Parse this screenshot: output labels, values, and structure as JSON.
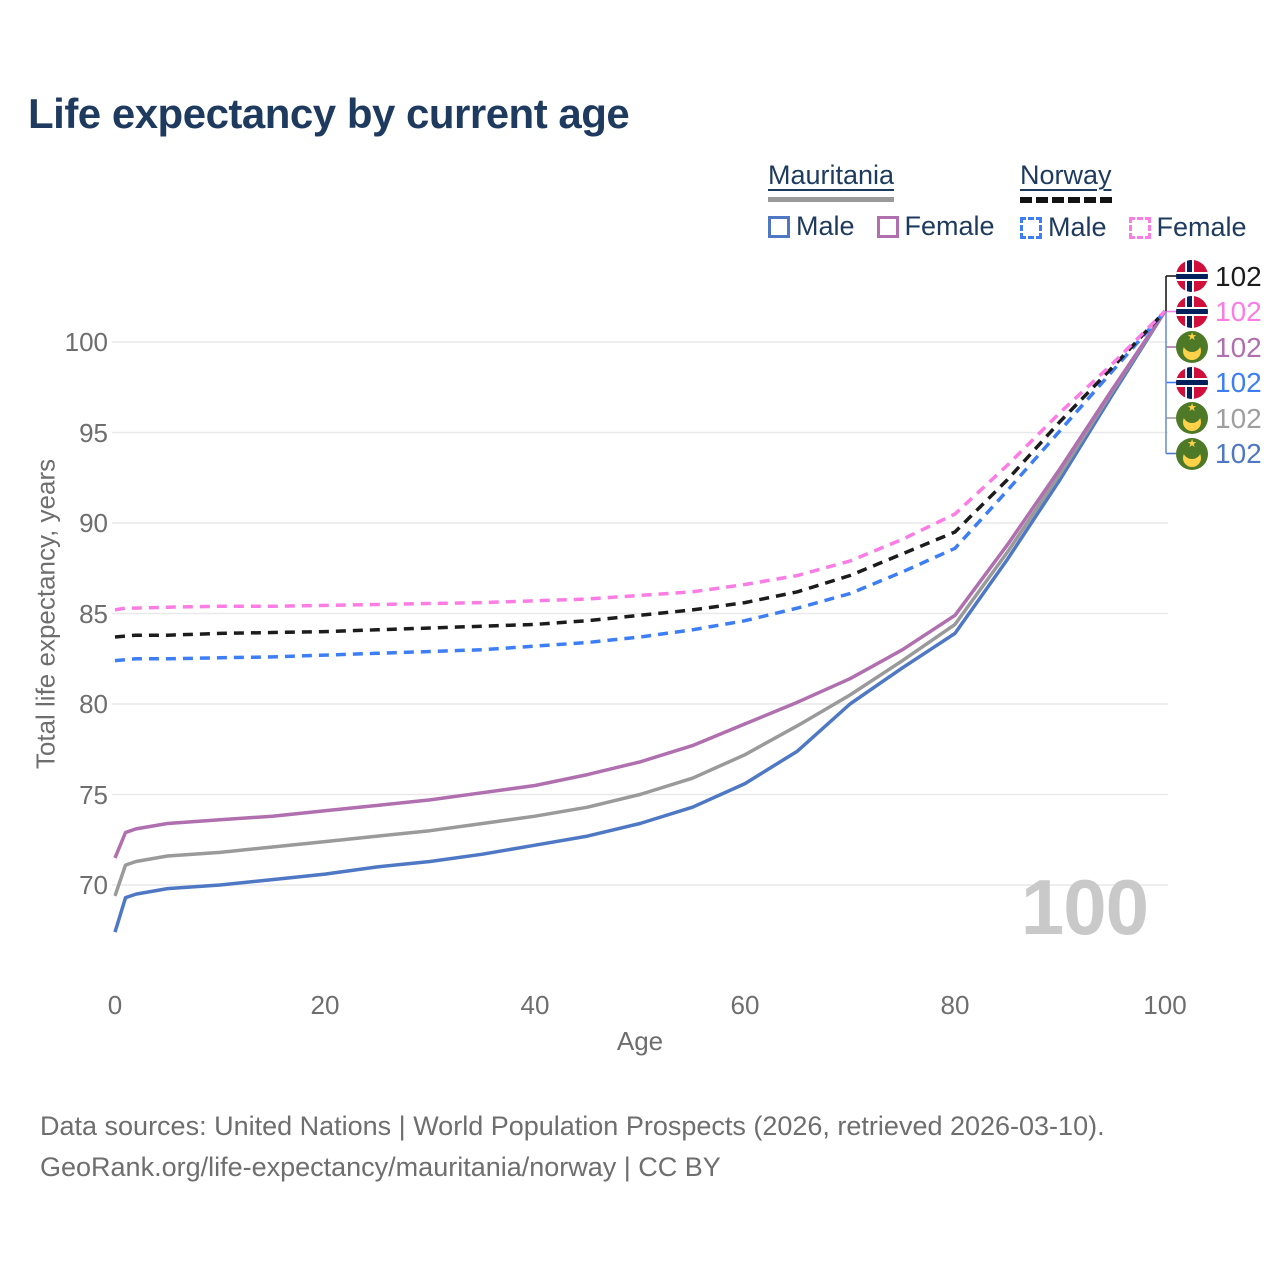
{
  "title": "Life expectancy by current age",
  "legend": {
    "groups": [
      {
        "country": "Mauritania",
        "style": "solid",
        "items": [
          {
            "label": "Male"
          },
          {
            "label": "Female"
          }
        ]
      },
      {
        "country": "Norway",
        "style": "dashed",
        "items": [
          {
            "label": "Male"
          },
          {
            "label": "Female"
          }
        ]
      }
    ]
  },
  "watermark_age": "100",
  "footer": {
    "line1": "Data sources: United Nations | World Population Prospects (2026, retrieved 2026-03-10).",
    "line2": "GeoRank.org/life-expectancy/mauritania/norway | CC BY"
  },
  "colors": {
    "title_text": "#1e3a5f",
    "axis_text": "#6e6e6e",
    "gridline": "#e9e9e9",
    "watermark": "#c9c9c9",
    "mauritania_male": "#4f78c4",
    "mauritania_female": "#b06fae",
    "mauritania_both": "#9a9a9a",
    "norway_male": "#3e7ef5",
    "norway_female": "#fb7ce4",
    "norway_both": "#1c1c1c"
  },
  "chart_data": {
    "type": "line",
    "title": "Life expectancy by current age",
    "xlabel": "Age",
    "ylabel": "Total life expectancy, years",
    "xlim": [
      0,
      100
    ],
    "ylim": [
      66,
      103
    ],
    "x_ticks": [
      0,
      20,
      40,
      60,
      80,
      100
    ],
    "y_ticks": [
      70,
      75,
      80,
      85,
      90,
      95,
      100
    ],
    "grid": true,
    "legend_position": "top-right",
    "x": [
      0,
      1,
      2,
      5,
      10,
      15,
      20,
      25,
      30,
      35,
      40,
      45,
      50,
      55,
      60,
      65,
      70,
      75,
      80,
      85,
      90,
      95,
      100
    ],
    "series": [
      {
        "name": "Mauritania Male",
        "country": "Mauritania",
        "sex": "Male",
        "style": "solid",
        "color": "#4f78c4",
        "values": [
          67.4,
          69.3,
          69.5,
          69.8,
          70.0,
          70.3,
          70.6,
          71.0,
          71.3,
          71.7,
          72.2,
          72.7,
          73.4,
          74.3,
          75.6,
          77.4,
          80.0,
          82.0,
          83.9,
          88.0,
          92.4,
          97.1,
          101.7
        ]
      },
      {
        "name": "Mauritania Both sexes",
        "country": "Mauritania",
        "sex": "Both",
        "style": "solid",
        "color": "#9a9a9a",
        "values": [
          69.4,
          71.1,
          71.3,
          71.6,
          71.8,
          72.1,
          72.4,
          72.7,
          73.0,
          73.4,
          73.8,
          74.3,
          75.0,
          75.9,
          77.2,
          78.8,
          80.5,
          82.4,
          84.4,
          88.4,
          92.7,
          97.3,
          101.7
        ]
      },
      {
        "name": "Mauritania Female",
        "country": "Mauritania",
        "sex": "Female",
        "style": "solid",
        "color": "#b06fae",
        "values": [
          71.5,
          72.9,
          73.1,
          73.4,
          73.6,
          73.8,
          74.1,
          74.4,
          74.7,
          75.1,
          75.5,
          76.1,
          76.8,
          77.7,
          78.9,
          80.1,
          81.4,
          83.0,
          84.9,
          88.8,
          93.0,
          97.4,
          101.7
        ]
      },
      {
        "name": "Norway Male",
        "country": "Norway",
        "sex": "Male",
        "style": "dashed",
        "color": "#3e7ef5",
        "values": [
          82.4,
          82.45,
          82.5,
          82.5,
          82.55,
          82.6,
          82.7,
          82.8,
          82.9,
          83.0,
          83.2,
          83.4,
          83.7,
          84.1,
          84.6,
          85.3,
          86.1,
          87.3,
          88.6,
          91.8,
          95.1,
          98.4,
          101.7
        ]
      },
      {
        "name": "Norway Both sexes",
        "country": "Norway",
        "sex": "Both",
        "style": "dashed",
        "color": "#1c1c1c",
        "values": [
          83.7,
          83.75,
          83.8,
          83.8,
          83.9,
          83.95,
          84.0,
          84.1,
          84.2,
          84.3,
          84.4,
          84.6,
          84.9,
          85.2,
          85.6,
          86.2,
          87.1,
          88.3,
          89.5,
          92.4,
          95.6,
          98.6,
          101.7
        ]
      },
      {
        "name": "Norway Female",
        "country": "Norway",
        "sex": "Female",
        "style": "dashed",
        "color": "#fb7ce4",
        "values": [
          85.2,
          85.3,
          85.3,
          85.35,
          85.4,
          85.4,
          85.45,
          85.5,
          85.55,
          85.6,
          85.7,
          85.8,
          86.0,
          86.2,
          86.6,
          87.1,
          87.9,
          89.1,
          90.5,
          93.2,
          96.1,
          98.8,
          101.7
        ]
      }
    ],
    "end_labels": [
      {
        "value": "102",
        "flag": "norway",
        "series": "Norway Both sexes",
        "color": "#1c1c1c"
      },
      {
        "value": "102",
        "flag": "norway",
        "series": "Norway Female",
        "color": "#fb7ce4"
      },
      {
        "value": "102",
        "flag": "mauritania",
        "series": "Mauritania Female",
        "color": "#b06fae"
      },
      {
        "value": "102",
        "flag": "norway",
        "series": "Norway Male",
        "color": "#3e7ef5"
      },
      {
        "value": "102",
        "flag": "mauritania",
        "series": "Mauritania Both sexes",
        "color": "#9e9e9e"
      },
      {
        "value": "102",
        "flag": "mauritania",
        "series": "Mauritania Male",
        "color": "#4f78c4"
      }
    ]
  }
}
